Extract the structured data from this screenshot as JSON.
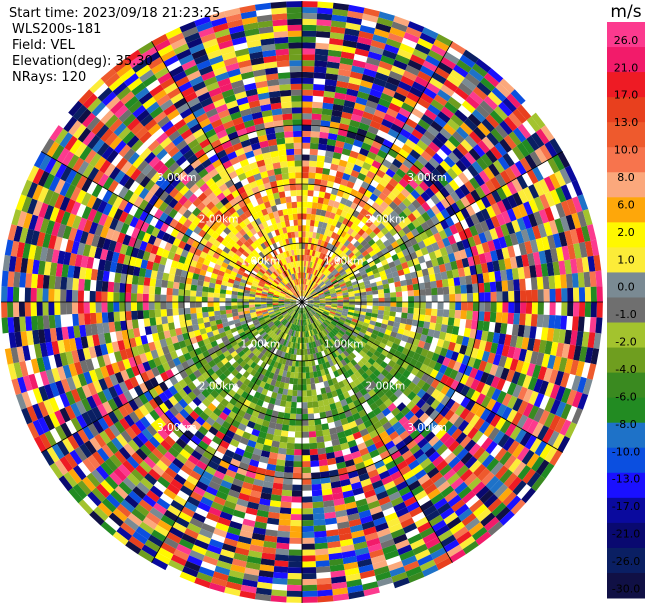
{
  "header": {
    "start_time": "Start time: 2023/09/18 21:23:25",
    "instrument": "WLS200s-181",
    "field": "Field: VEL",
    "elevation": "Elevation(deg): 35.30",
    "nrays": "NRays: 120"
  },
  "chart_data": {
    "type": "heatmap",
    "projection": "polar PPI (plan position indicator)",
    "field": "VEL",
    "units": "m/s",
    "n_rays": 120,
    "elevation_deg": 35.3,
    "range_rings": [
      {
        "range_km": 1,
        "label": "1.00km"
      },
      {
        "range_km": 2,
        "label": "2.00km"
      },
      {
        "range_km": 3,
        "label": "3.00km"
      }
    ],
    "max_range_km": 5.1,
    "spokes_every_deg": 30,
    "colorbar": {
      "unit_label": "m/s",
      "ticks": [
        "26.0",
        "21.0",
        "17.0",
        "13.0",
        "10.0",
        "8.0",
        "6.0",
        "2.0",
        "1.0",
        "0.0",
        "-1.0",
        "-2.0",
        "-4.0",
        "-6.0",
        "-8.0",
        "-10.0",
        "-13.0",
        "-17.0",
        "-21.0",
        "-26.0",
        "-30.0"
      ],
      "colors": [
        "#fc3a8e",
        "#f21b6a",
        "#ee1b24",
        "#e8401e",
        "#ee5a2d",
        "#f7744d",
        "#fba87c",
        "#fea70a",
        "#fff800",
        "#fcec38",
        "#7a8a93",
        "#6f6f6f",
        "#a3c32e",
        "#6f9e1f",
        "#3a8a20",
        "#228b22",
        "#1e72c8",
        "#0b4fe0",
        "#1a10ff",
        "#0a0a9e",
        "#090970",
        "#0a1f63",
        "#101045"
      ]
    },
    "sectors": [
      {
        "name": "near-field north (positive, yellow/orange)",
        "az_from": 285,
        "az_to": 45,
        "range_km": [
          0,
          2.55
        ],
        "dominant": "positive 1-6 m/s"
      },
      {
        "name": "near-field south (negative, green)",
        "az_from": 110,
        "az_to": 250,
        "range_km": [
          0,
          2.55
        ],
        "dominant": "negative -2 to -8 m/s"
      },
      {
        "name": "east/west (near zero, gray)",
        "az_from": 45,
        "az_to": 110,
        "range_km": [
          0,
          2.3
        ],
        "dominant": "-1 to 1 m/s"
      },
      {
        "name": "far field (noise)",
        "az_from": 0,
        "az_to": 360,
        "range_km": [
          2.6,
          5.1
        ],
        "dominant": "random, full scale -30 to 26 m/s"
      }
    ]
  }
}
